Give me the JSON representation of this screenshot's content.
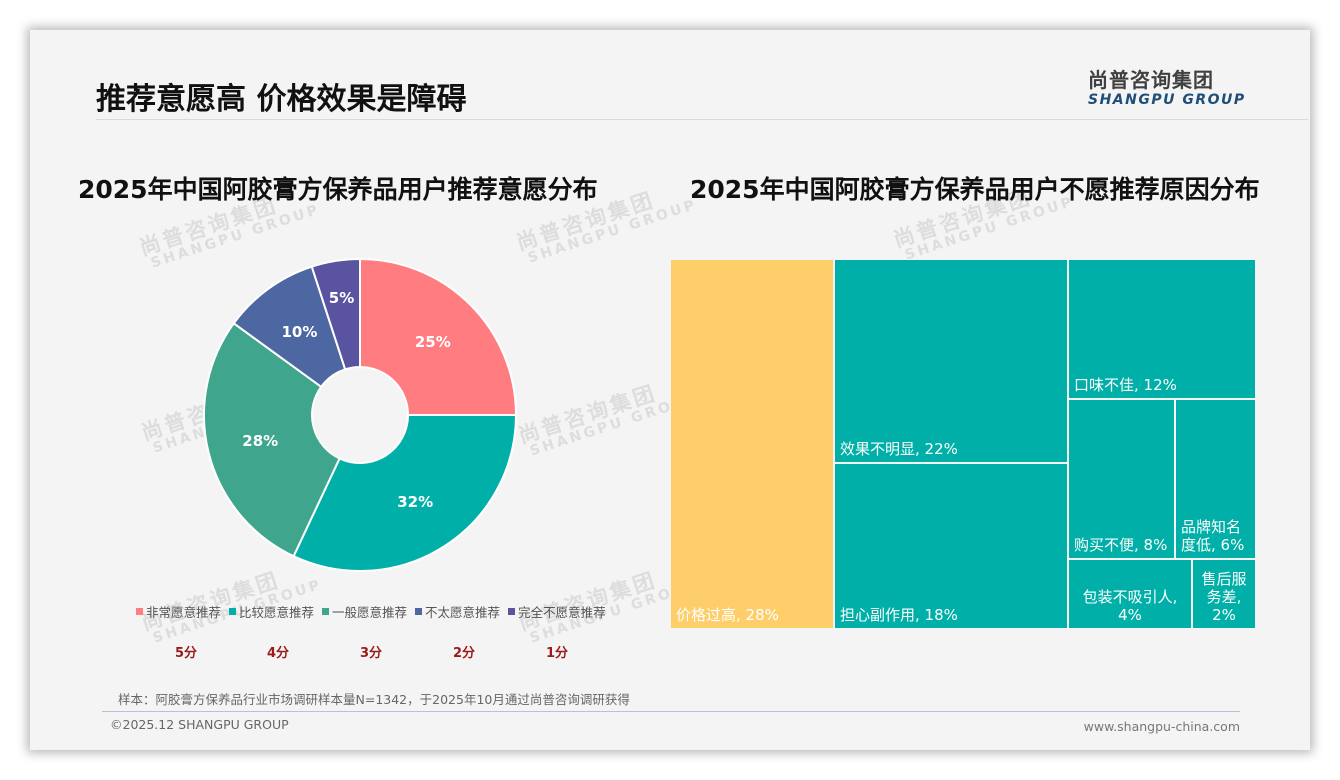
{
  "header": {
    "title": "推荐意愿高 价格效果是障碍",
    "logo_cn": "尚普咨询集团",
    "logo_en": "SHANGPU GROUP"
  },
  "watermark": {
    "cn": "尚普咨询集团",
    "en": "SHANGPU GROUP"
  },
  "left_chart": {
    "title": "2025年中国阿胶膏方保养品用户推荐意愿分布",
    "legend": [
      {
        "label": "非常愿意推荐",
        "color": "#FF7C80"
      },
      {
        "label": "比较愿意推荐",
        "color": "#00B0A8"
      },
      {
        "label": "一般愿意推荐",
        "color": "#3FA58C"
      },
      {
        "label": "不太愿意推荐",
        "color": "#4D67A3"
      },
      {
        "label": "完全不愿意推荐",
        "color": "#5A54A0"
      }
    ],
    "scores": [
      "5分",
      "4分",
      "3分",
      "2分",
      "1分"
    ],
    "slice_labels": [
      "25%",
      "32%",
      "28%",
      "10%",
      "5%"
    ]
  },
  "right_chart": {
    "title": "2025年中国阿胶膏方保养品用户不愿推荐原因分布",
    "tiles": [
      {
        "label": "价格过高, 28%"
      },
      {
        "label": "效果不明显, 22%"
      },
      {
        "label": "担心副作用, 18%"
      },
      {
        "label": "口味不佳, 12%"
      },
      {
        "label": "购买不便, 8%"
      },
      {
        "label": "品牌知名度低, 6%"
      },
      {
        "label": "包装不吸引人, 4%"
      },
      {
        "label": "售后服务差, 2%"
      }
    ]
  },
  "footer": {
    "note": "样本：阿胶膏方保养品行业市场调研样本量N=1342，于2025年10月通过尚普咨询调研获得",
    "copyright": "©2025.12 SHANGPU GROUP",
    "website": "www.shangpu-china.com"
  },
  "chart_data": [
    {
      "type": "pie",
      "title": "2025年中国阿胶膏方保养品用户推荐意愿分布",
      "donut": true,
      "categories": [
        "非常愿意推荐",
        "比较愿意推荐",
        "一般愿意推荐",
        "不太愿意推荐",
        "完全不愿意推荐"
      ],
      "scores": [
        "5分",
        "4分",
        "3分",
        "2分",
        "1分"
      ],
      "values": [
        25,
        32,
        28,
        10,
        5
      ],
      "unit": "%",
      "colors": [
        "#FF7C80",
        "#00B0A8",
        "#3FA58C",
        "#4D67A3",
        "#5A54A0"
      ],
      "legend_position": "bottom"
    },
    {
      "type": "treemap",
      "title": "2025年中国阿胶膏方保养品用户不愿推荐原因分布",
      "categories": [
        "价格过高",
        "效果不明显",
        "担心副作用",
        "口味不佳",
        "购买不便",
        "品牌知名度低",
        "包装不吸引人",
        "售后服务差"
      ],
      "values": [
        28,
        22,
        18,
        12,
        8,
        6,
        4,
        2
      ],
      "unit": "%",
      "colors": [
        "#FDCE6A",
        "#00B0A8",
        "#00B0A8",
        "#00B0A8",
        "#00B0A8",
        "#00B0A8",
        "#00B0A8",
        "#00B0A8"
      ]
    }
  ]
}
